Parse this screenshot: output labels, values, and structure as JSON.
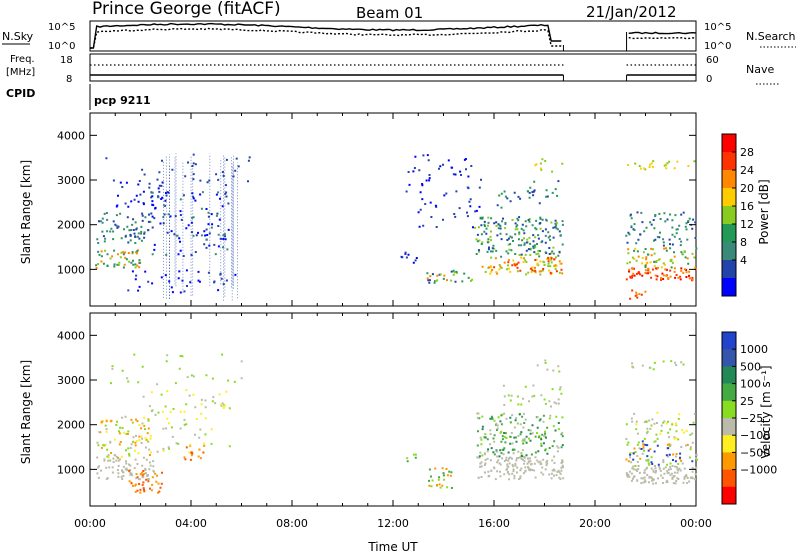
{
  "header": {
    "station": "Prince George (fitACF)",
    "beam": "Beam 01",
    "date": "21/Jan/2012"
  },
  "noise_panel": {
    "left_label": "N.Sky",
    "right_label": "N.Search",
    "left_ticks": [
      "10^5",
      "10^0"
    ],
    "right_ticks": [
      "10^5",
      "10^0"
    ]
  },
  "freq_panel": {
    "left_label_1": "Freq.",
    "left_label_2": "[MHz]",
    "right_label": "Nave",
    "left_ticks": [
      "18",
      "8"
    ],
    "right_ticks": [
      "60",
      "0"
    ]
  },
  "cpid": {
    "label": "CPID",
    "value": "pcp 9211"
  },
  "colors": {
    "power_scale": [
      "#0000ff",
      "#2244aa",
      "#3a8a7a",
      "#229955",
      "#88cc22",
      "#ffcc00",
      "#ff8800",
      "#ff3300",
      "#ff0000"
    ],
    "velocity_scale": [
      "#2244cc",
      "#3355aa",
      "#228855",
      "#44aa44",
      "#88dd22",
      "#bbbbaa",
      "#ffee22",
      "#ff9900",
      "#ff5500",
      "#ff0000"
    ]
  },
  "chart_data": [
    {
      "type": "heatmap",
      "name": "power",
      "ylabel": "Slant Range [km]",
      "ylim": [
        180,
        4500
      ],
      "yticks": [
        "1000",
        "2000",
        "3000",
        "4000"
      ],
      "xlim": [
        "00:00",
        "24:00"
      ],
      "colorbar_label": "Power [dB]",
      "colorbar_ticks": [
        "4",
        "8",
        "12",
        "16",
        "20",
        "24",
        "28"
      ],
      "data_gap": [
        "18:45",
        "21:15"
      ]
    },
    {
      "type": "heatmap",
      "name": "velocity",
      "ylabel": "Slant Range [km]",
      "ylim": [
        180,
        4500
      ],
      "yticks": [
        "1000",
        "2000",
        "3000",
        "4000"
      ],
      "xticks": [
        "00:00",
        "04:00",
        "08:00",
        "12:00",
        "16:00",
        "20:00",
        "00:00"
      ],
      "xlabel": "Time UT",
      "colorbar_label": "Velocity [m s⁻¹]",
      "colorbar_ticks": [
        "1000",
        "500",
        "100",
        "25",
        "−25",
        "−100",
        "−500",
        "−1000"
      ],
      "data_gap": [
        "18:45",
        "21:15"
      ]
    }
  ]
}
